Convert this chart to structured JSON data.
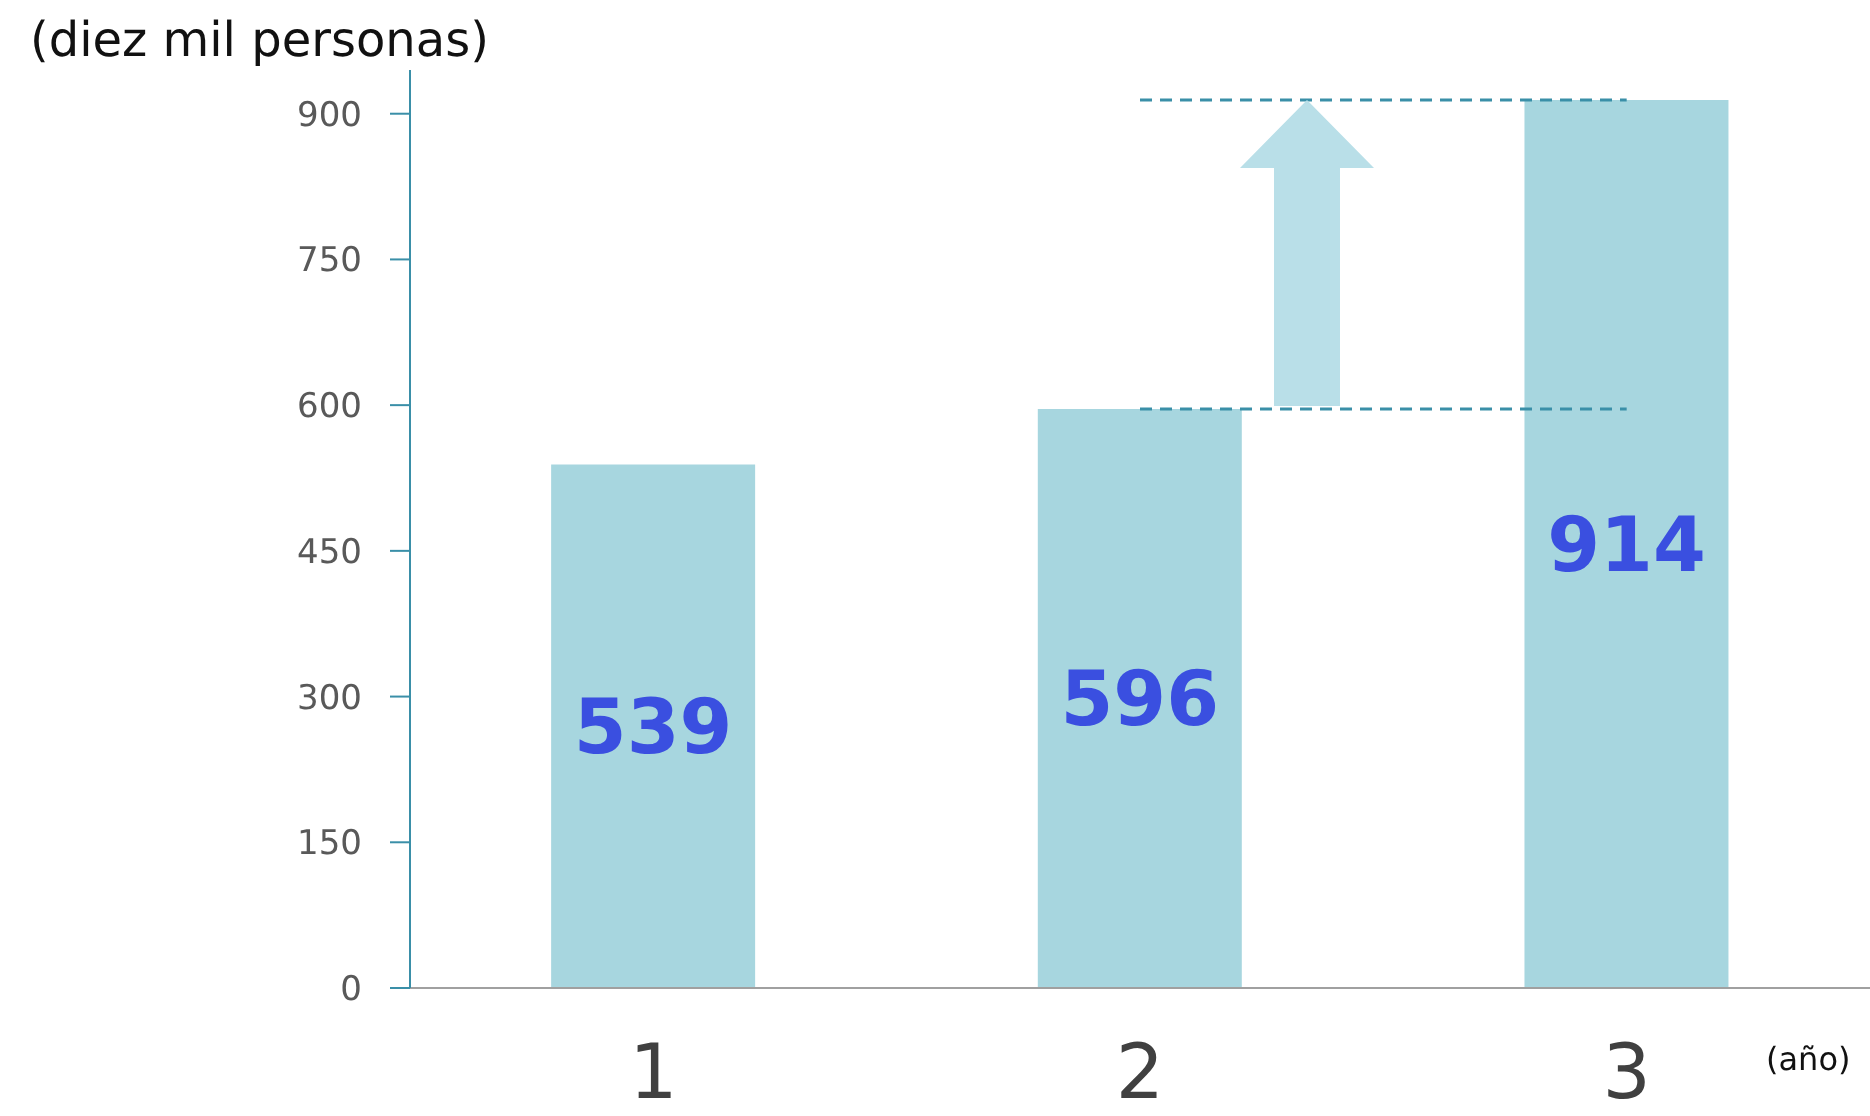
{
  "chart_data": {
    "type": "bar",
    "ylabel": "(diez mil personas)",
    "xlabel": "(año)",
    "categories": [
      "1",
      "2",
      "3"
    ],
    "values": [
      539,
      596,
      914
    ],
    "color": "#a7d6df",
    "ylim": [
      0,
      945
    ],
    "yticks": [
      0,
      150,
      300,
      450,
      600,
      750,
      900
    ],
    "grid": false,
    "data_labels": true,
    "legend": false,
    "ref_lines": [
      {
        "axis": "y",
        "value": 596,
        "color": "#3a8fa8",
        "line_style": "dashed"
      },
      {
        "axis": "y",
        "value": 914,
        "color": "#3a8fa8",
        "line_style": "dashed"
      }
    ]
  }
}
